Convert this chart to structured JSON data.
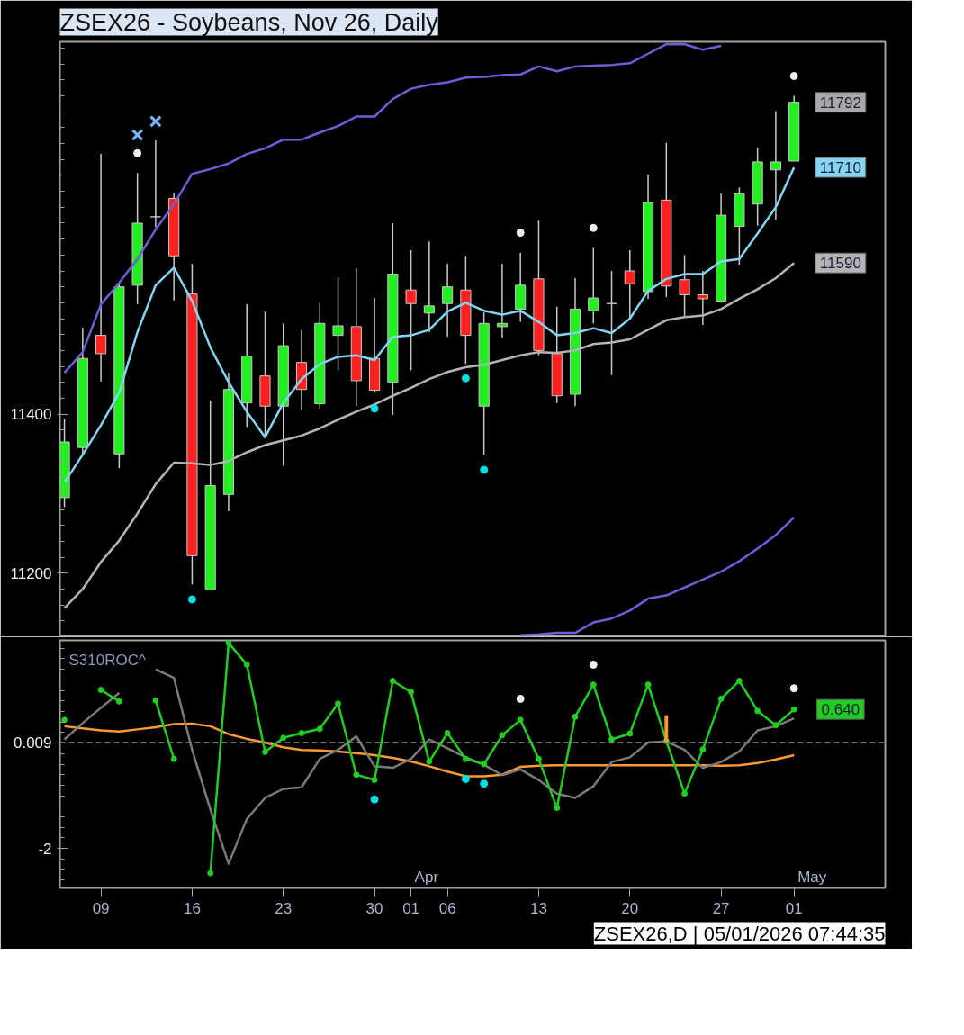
{
  "chart_data": [
    {
      "type": "candlestick",
      "title": "ZSEX26 - Soybeans, Nov 26, Daily",
      "tick_labels": "y",
      "categories": [
        null,
        null,
        "09",
        null,
        null,
        null,
        null,
        "16",
        null,
        null,
        null,
        null,
        "23",
        null,
        null,
        null,
        null,
        "30",
        null,
        "01",
        null,
        "06",
        null,
        null,
        null,
        null,
        "13",
        null,
        null,
        null,
        null,
        "20",
        null,
        null,
        null,
        null,
        "27",
        null,
        null,
        null,
        "01"
      ],
      "ohlc": [
        [
          11295,
          11394,
          11283,
          11365
        ],
        [
          11358,
          11509,
          11350,
          11470
        ],
        [
          11499,
          11727,
          11441,
          11476
        ],
        [
          11350,
          11565,
          11332,
          11560
        ],
        [
          11562,
          11703,
          11538,
          11640
        ],
        [
          11648,
          11744,
          11635,
          11648
        ],
        [
          11671,
          11678,
          11543,
          11599
        ],
        [
          11551,
          11589,
          11186,
          11222
        ],
        [
          11179,
          11417,
          11179,
          11310
        ],
        [
          11299,
          11452,
          11278,
          11431
        ],
        [
          11414,
          11538,
          11384,
          11473
        ],
        [
          11448,
          11529,
          11373,
          11410
        ],
        [
          11410,
          11514,
          11335,
          11486
        ],
        [
          11465,
          11506,
          11406,
          11431
        ],
        [
          11413,
          11540,
          11407,
          11514
        ],
        [
          11499,
          11572,
          11455,
          11511
        ],
        [
          11510,
          11583,
          11410,
          11442
        ],
        [
          11470,
          11546,
          11427,
          11430
        ],
        [
          11440,
          11640,
          11399,
          11576
        ],
        [
          11556,
          11606,
          11455,
          11539
        ],
        [
          11527,
          11617,
          11503,
          11536
        ],
        [
          11539,
          11589,
          11497,
          11560
        ],
        [
          11556,
          11599,
          11463,
          11499
        ],
        [
          11410,
          11528,
          11349,
          11514
        ],
        [
          11510,
          11589,
          11496,
          11514
        ],
        [
          11532,
          11603,
          11516,
          11562
        ],
        [
          11570,
          11643,
          11474,
          11480
        ],
        [
          11476,
          11535,
          11414,
          11423
        ],
        [
          11425,
          11571,
          11410,
          11532
        ],
        [
          11530,
          11609,
          11514,
          11546
        ],
        [
          11539,
          11580,
          11449,
          11539
        ],
        [
          11580,
          11606,
          11520,
          11564
        ],
        [
          11554,
          11701,
          11545,
          11666
        ],
        [
          11669,
          11741,
          11547,
          11561
        ],
        [
          11569,
          11600,
          11522,
          11550
        ],
        [
          11550,
          11580,
          11512,
          11545
        ],
        [
          11542,
          11677,
          11540,
          11650
        ],
        [
          11636,
          11685,
          11588,
          11677
        ],
        [
          11664,
          11735,
          11637,
          11717
        ],
        [
          11707,
          11781,
          11644,
          11717
        ],
        [
          11718,
          11800,
          11718,
          11792
        ]
      ],
      "value_labels": [
        null,
        null,
        null,
        null,
        null,
        null,
        null,
        null,
        null,
        null,
        null,
        null,
        null,
        null,
        null,
        null,
        null,
        null,
        null,
        null,
        null,
        null,
        null,
        null,
        null,
        null,
        null,
        null,
        null,
        null,
        null,
        null,
        null,
        null,
        null,
        null,
        null,
        null,
        null,
        null,
        "11792"
      ],
      "colors": [
        "#22ee22",
        "#22ee22",
        "#ff2020",
        "#22ee22",
        "#22ee22",
        "#c8c8c8",
        "#ff2020",
        "#ff2020",
        "#22ee22",
        "#22ee22",
        "#22ee22",
        "#ff2020",
        "#22ee22",
        "#ff2020",
        "#22ee22",
        "#22ee22",
        "#ff2020",
        "#ff2020",
        "#22ee22",
        "#ff2020",
        "#22ee22",
        "#22ee22",
        "#ff2020",
        "#22ee22",
        "#22ee22",
        "#22ee22",
        "#ff2020",
        "#ff2020",
        "#22ee22",
        "#22ee22",
        "#c8c8c8",
        "#ff2020",
        "#22ee22",
        "#ff2020",
        "#ff2020",
        "#ff2020",
        "#22ee22",
        "#22ee22",
        "#22ee22",
        "#22ee22",
        "#22ee22"
      ],
      "ylim": [
        11120,
        11868
      ],
      "yticks": [
        {
          "value": 11140,
          "label": null
        },
        {
          "value": 11160,
          "label": null
        },
        {
          "value": 11180,
          "label": null
        },
        11200,
        {
          "value": 11220,
          "label": null
        },
        {
          "value": 11240,
          "label": null
        },
        {
          "value": 11260,
          "label": null
        },
        {
          "value": 11280,
          "label": null
        },
        {
          "value": 11300,
          "label": null
        },
        {
          "value": 11320,
          "label": null
        },
        {
          "value": 11340,
          "label": null
        },
        {
          "value": 11360,
          "label": null
        },
        {
          "value": 11380,
          "label": null
        },
        11400,
        {
          "value": 11420,
          "label": null
        },
        {
          "value": 11440,
          "label": null
        },
        {
          "value": 11460,
          "label": null
        },
        {
          "value": 11480,
          "label": null
        },
        {
          "value": 11500,
          "label": null
        },
        {
          "value": 11520,
          "label": null
        },
        {
          "value": 11540,
          "label": null
        },
        {
          "value": 11560,
          "label": null
        },
        {
          "value": 11580,
          "label": null
        },
        {
          "value": 11600,
          "label": null
        },
        {
          "value": 11620,
          "label": null
        },
        {
          "value": 11640,
          "label": null
        },
        {
          "value": 11660,
          "label": null
        },
        {
          "value": 11680,
          "label": null
        },
        {
          "value": 11700,
          "label": null
        },
        {
          "value": 11720,
          "label": null
        },
        {
          "value": 11740,
          "label": null
        },
        {
          "value": 11760,
          "label": null
        },
        {
          "value": 11780,
          "label": null
        },
        {
          "value": 11800,
          "label": null
        },
        {
          "value": 11820,
          "label": null
        },
        {
          "value": 11840,
          "label": null
        },
        {
          "value": 11860,
          "label": null
        }
      ],
      "series": [
        {
          "type": "line",
          "color": "#6a60d8",
          "values": [
            11452,
            11478,
            11538,
            11565,
            11595,
            11632,
            11664,
            11702,
            11708,
            11715,
            11727,
            11734,
            11745,
            11745,
            11754,
            11762,
            11774,
            11774,
            11796,
            11809,
            11814,
            11817,
            11823,
            11824,
            11826,
            11827,
            11837,
            11831,
            11837,
            11838,
            11839,
            11841,
            11853,
            11865,
            11865,
            11858,
            11863,
            null,
            null,
            null,
            null
          ]
        },
        {
          "type": "line",
          "color": "#6a60d8",
          "values": [
            null,
            null,
            null,
            null,
            null,
            null,
            null,
            null,
            null,
            null,
            null,
            null,
            null,
            null,
            null,
            null,
            null,
            null,
            null,
            null,
            null,
            null,
            null,
            null,
            null,
            11122,
            11123,
            11125,
            11125,
            11138,
            11143,
            11153,
            11168,
            11172,
            11182,
            11192,
            11202,
            11215,
            11231,
            11248,
            11270
          ]
        },
        {
          "type": "line",
          "color": "#b4b4b4",
          "values": [
            11156,
            11180,
            11214,
            11241,
            11275,
            11312,
            11339,
            11338,
            11336,
            11341,
            11352,
            11361,
            11367,
            11373,
            11382,
            11393,
            11403,
            11412,
            11423,
            11433,
            11444,
            11453,
            11459,
            11462,
            11468,
            11474,
            11478,
            11477,
            11480,
            11488,
            11490,
            11494,
            11506,
            11518,
            11522,
            11524,
            11532,
            11545,
            11557,
            11571,
            11590
          ],
          "value_labels": [
            null,
            null,
            null,
            null,
            null,
            null,
            null,
            null,
            null,
            null,
            null,
            null,
            null,
            null,
            null,
            null,
            null,
            null,
            null,
            null,
            null,
            null,
            null,
            null,
            null,
            null,
            null,
            null,
            null,
            null,
            null,
            null,
            null,
            null,
            null,
            null,
            null,
            null,
            null,
            null,
            "11590"
          ]
        },
        {
          "type": "line",
          "color": "#84d4f2",
          "values": [
            11314,
            11349,
            11386,
            11427,
            11503,
            11562,
            11584,
            11542,
            11484,
            11440,
            11403,
            11371,
            11414,
            11444,
            11463,
            11472,
            11474,
            11468,
            11497,
            11499,
            11506,
            11529,
            11540,
            11530,
            11525,
            11530,
            11516,
            11499,
            11502,
            11508,
            11502,
            11520,
            11555,
            11570,
            11576,
            11576,
            11592,
            11595,
            11627,
            11660,
            11710
          ],
          "value_labels": [
            null,
            null,
            null,
            null,
            null,
            null,
            null,
            null,
            null,
            null,
            null,
            null,
            null,
            null,
            null,
            null,
            null,
            null,
            null,
            null,
            null,
            null,
            null,
            null,
            null,
            null,
            null,
            null,
            null,
            null,
            null,
            null,
            null,
            null,
            null,
            null,
            null,
            null,
            null,
            null,
            "11710"
          ]
        },
        {
          "type": "scatter",
          "marker": "circle",
          "color": "#eeeeee",
          "values": [
            null,
            null,
            null,
            null,
            11728,
            null,
            null,
            null,
            null,
            null,
            null,
            null,
            null,
            null,
            null,
            null,
            null,
            null,
            null,
            null,
            null,
            null,
            null,
            null,
            null,
            11628,
            null,
            null,
            null,
            11634,
            null,
            null,
            null,
            null,
            null,
            null,
            null,
            null,
            null,
            null,
            11825
          ]
        },
        {
          "type": "scatter",
          "marker": "circle",
          "color": "#00e0e8",
          "values": [
            null,
            null,
            null,
            null,
            null,
            null,
            null,
            11167,
            null,
            null,
            null,
            null,
            null,
            null,
            null,
            null,
            null,
            11407,
            null,
            null,
            null,
            null,
            11445,
            11330,
            null,
            null,
            null,
            null,
            null,
            null,
            null,
            null,
            null,
            null,
            null,
            null,
            null,
            null,
            null,
            null,
            null
          ]
        },
        {
          "type": "scatter",
          "marker": "cross",
          "color": "#7ab8f5",
          "values": [
            null,
            null,
            null,
            null,
            11751,
            11768,
            null,
            null,
            null,
            null,
            null,
            null,
            null,
            null,
            null,
            null,
            null,
            null,
            null,
            null,
            null,
            null,
            null,
            null,
            null,
            null,
            null,
            null,
            null,
            null,
            null,
            null,
            null,
            null,
            null,
            null,
            null,
            null,
            null,
            null,
            null
          ]
        }
      ]
    },
    {
      "type": "line",
      "title": "S310ROC^",
      "categories": [
        null,
        null,
        "09",
        null,
        null,
        null,
        null,
        "16",
        null,
        null,
        null,
        null,
        "23",
        null,
        null,
        null,
        null,
        "30",
        null,
        "01",
        null,
        "06",
        null,
        null,
        null,
        null,
        "13",
        null,
        null,
        null,
        null,
        "20",
        null,
        null,
        null,
        null,
        "27",
        null,
        null,
        null,
        "01"
      ],
      "ylim": [
        -2.75,
        1.95
      ],
      "yticks": [
        {
          "value": -2.6,
          "label": null
        },
        {
          "value": -2.4,
          "label": null
        },
        {
          "value": -2.2,
          "label": null
        },
        -2,
        {
          "value": -1.8,
          "label": null
        },
        {
          "value": -1.6,
          "label": null
        },
        {
          "value": -1.4,
          "label": null
        },
        {
          "value": -1.2,
          "label": null
        },
        {
          "value": -1,
          "label": null
        },
        {
          "value": -0.8,
          "label": null
        },
        {
          "value": -0.6,
          "label": null
        },
        {
          "value": -0.4,
          "label": null
        },
        {
          "value": -0.2,
          "label": null
        },
        0.009,
        {
          "value": 0.2,
          "label": null
        },
        {
          "value": 0.4,
          "label": null
        },
        {
          "value": 0.6,
          "label": null
        },
        {
          "value": 0.8,
          "label": null
        },
        {
          "value": 1,
          "label": null
        },
        {
          "value": 1.2,
          "label": null
        },
        {
          "value": 1.4,
          "label": null
        },
        {
          "value": 1.6,
          "label": null
        },
        {
          "value": 1.8,
          "label": null
        }
      ],
      "ref_lines": [
        {
          "axis": "y",
          "value": 0.009,
          "color": "#8c8c8c",
          "line_style": "dashed"
        }
      ],
      "series": [
        {
          "color": "#ff9a33",
          "values": [
            0.32,
            0.28,
            0.24,
            0.22,
            0.26,
            0.3,
            0.36,
            0.37,
            0.32,
            0.17,
            0.08,
            0.01,
            -0.08,
            -0.13,
            -0.14,
            -0.16,
            -0.19,
            -0.23,
            -0.28,
            -0.35,
            -0.44,
            -0.54,
            -0.63,
            -0.63,
            -0.6,
            -0.45,
            -0.43,
            -0.42,
            -0.42,
            -0.42,
            -0.42,
            -0.42,
            -0.42,
            -0.42,
            -0.42,
            -0.42,
            -0.43,
            -0.42,
            -0.38,
            -0.31,
            -0.23
          ]
        },
        {
          "color": "#7a7a7a",
          "values": [
            0.07,
            0.38,
            0.67,
            0.95,
            null,
            1.4,
            1.24,
            -0.13,
            -1.26,
            -2.29,
            -1.44,
            -1.04,
            -0.87,
            -0.84,
            -0.3,
            -0.13,
            0.13,
            -0.44,
            -0.47,
            -0.3,
            0.07,
            -0.1,
            -0.27,
            -0.41,
            -0.61,
            -0.5,
            -0.7,
            -0.96,
            -1.04,
            -0.82,
            -0.36,
            -0.27,
            0.01,
            0.03,
            -0.13,
            -0.47,
            -0.36,
            -0.16,
            0.24,
            0.32,
            0.47
          ]
        },
        {
          "color": "#22cc22",
          "marker": "circle",
          "values": [
            0.44,
            null,
            1.01,
            0.79,
            null,
            0.81,
            -0.3,
            null,
            -2.47,
            1.9,
            1.49,
            -0.17,
            0.1,
            0.19,
            0.27,
            0.75,
            -0.6,
            -0.7,
            1.18,
            0.97,
            -0.35,
            0.19,
            -0.3,
            -0.4,
            0.15,
            0.44,
            -0.3,
            -1.23,
            0.5,
            1.11,
            0.07,
            0.18,
            1.11,
            0.04,
            -0.96,
            -0.12,
            0.84,
            1.18,
            0.61,
            0.34,
            0.64
          ],
          "value_labels": [
            null,
            null,
            null,
            null,
            null,
            null,
            null,
            null,
            null,
            null,
            null,
            null,
            null,
            null,
            null,
            null,
            null,
            null,
            null,
            null,
            null,
            null,
            null,
            null,
            null,
            null,
            null,
            null,
            null,
            null,
            null,
            null,
            null,
            null,
            null,
            null,
            null,
            null,
            null,
            null,
            "0.640"
          ]
        },
        {
          "type": "bar",
          "color": "#ff9a33",
          "values": [
            null,
            null,
            null,
            null,
            null,
            null,
            null,
            null,
            null,
            null,
            null,
            null,
            null,
            null,
            null,
            null,
            null,
            null,
            null,
            null,
            null,
            null,
            null,
            null,
            null,
            null,
            null,
            null,
            null,
            null,
            null,
            null,
            null,
            0.52,
            null,
            null,
            null,
            null,
            null,
            null,
            null
          ]
        },
        {
          "type": "scatter",
          "marker": "circle",
          "color": "#eeeeee",
          "values": [
            null,
            null,
            null,
            null,
            null,
            null,
            null,
            null,
            null,
            null,
            null,
            null,
            null,
            null,
            null,
            null,
            null,
            null,
            null,
            null,
            null,
            null,
            null,
            null,
            null,
            0.84,
            null,
            null,
            null,
            1.49,
            null,
            null,
            null,
            null,
            null,
            null,
            null,
            null,
            null,
            null,
            1.04
          ]
        },
        {
          "type": "scatter",
          "marker": "circle",
          "color": "#00e0e8",
          "values": [
            null,
            null,
            null,
            null,
            null,
            null,
            null,
            null,
            null,
            null,
            null,
            null,
            null,
            null,
            null,
            null,
            null,
            -1.07,
            null,
            null,
            null,
            null,
            -0.68,
            -0.77,
            null,
            null,
            null,
            null,
            null,
            null,
            null,
            null,
            null,
            null,
            null,
            null,
            null,
            null,
            null,
            null,
            null
          ]
        }
      ],
      "annotations": [
        "Apr",
        "May",
        "ZSEX26,D | 05/01/2026 07:44:35"
      ]
    }
  ]
}
